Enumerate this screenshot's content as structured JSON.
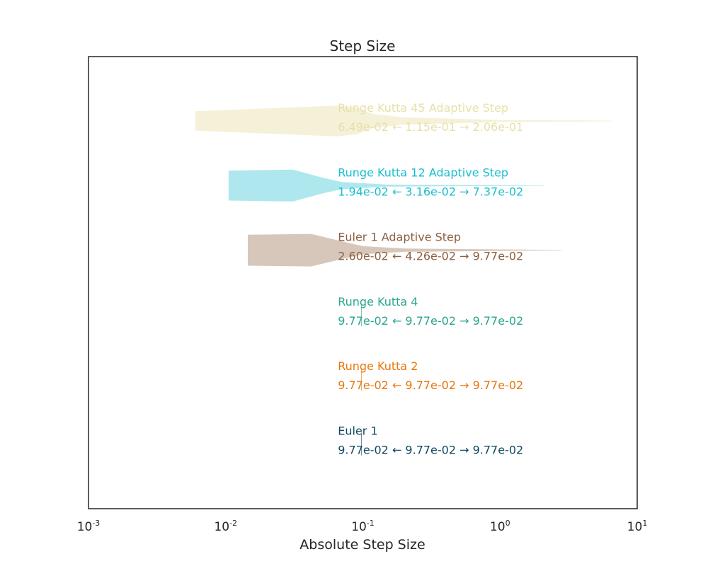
{
  "chart_data": {
    "type": "violin",
    "title": "Step Size",
    "xlabel": "Absolute Step Size",
    "ylabel": "",
    "x_scale": "log",
    "xlim": [
      0.001,
      10
    ],
    "x_ticks": [
      {
        "value": 0.001,
        "base": "10",
        "exp": "-3"
      },
      {
        "value": 0.01,
        "base": "10",
        "exp": "-2"
      },
      {
        "value": 0.1,
        "base": "10",
        "exp": "-1"
      },
      {
        "value": 1,
        "base": "10",
        "exp": "0"
      },
      {
        "value": 10,
        "base": "10",
        "exp": "1"
      }
    ],
    "grid": false,
    "legend": "none",
    "series": [
      {
        "name": "Runge Kutta 45 Adaptive Step",
        "stats_text": "6.49e-02 ← 1.15e-01 → 2.06e-01",
        "color": "#e8dfa8",
        "fill_opacity": 0.45,
        "profile": [
          [
            0.006,
            0.6
          ],
          [
            0.065,
            0.95
          ],
          [
            0.09,
            0.82
          ],
          [
            0.12,
            0.42
          ],
          [
            0.2,
            0.22
          ],
          [
            1.0,
            0.06
          ],
          [
            6.5,
            0.02
          ]
        ]
      },
      {
        "name": "Runge Kutta 12 Adaptive Step",
        "stats_text": "1.94e-02 ← 3.16e-02 → 7.37e-02",
        "color": "#17becf",
        "fill_opacity": 0.35,
        "profile": [
          [
            0.0105,
            0.92
          ],
          [
            0.031,
            0.98
          ],
          [
            0.05,
            0.5
          ],
          [
            0.07,
            0.22
          ],
          [
            0.15,
            0.06
          ],
          [
            2.1,
            0.015
          ]
        ]
      },
      {
        "name": "Euler 1 Adaptive Step",
        "stats_text": "2.60e-02 ← 4.26e-02 → 9.77e-02",
        "color": "#8c5e3c",
        "fill_opacity": 0.35,
        "profile": [
          [
            0.0145,
            0.95
          ],
          [
            0.042,
            1.0
          ],
          [
            0.07,
            0.55
          ],
          [
            0.1,
            0.25
          ],
          [
            0.2,
            0.1
          ],
          [
            2.8,
            0.015
          ]
        ]
      },
      {
        "name": "Runge Kutta 4",
        "stats_text": "9.77e-02 ← 9.77e-02 → 9.77e-02",
        "color": "#2ca58d",
        "fill_opacity": 0.6,
        "profile": [
          [
            0.0977,
            0.7
          ]
        ]
      },
      {
        "name": "Runge Kutta 2",
        "stats_text": "9.77e-02 ← 9.77e-02 → 9.77e-02",
        "color": "#e8760a",
        "fill_opacity": 0.6,
        "profile": [
          [
            0.0977,
            0.7
          ]
        ]
      },
      {
        "name": "Euler 1",
        "stats_text": "9.77e-02 ← 9.77e-02 → 9.77e-02",
        "color": "#0d4761",
        "fill_opacity": 0.6,
        "profile": [
          [
            0.0977,
            0.7
          ]
        ]
      }
    ]
  }
}
